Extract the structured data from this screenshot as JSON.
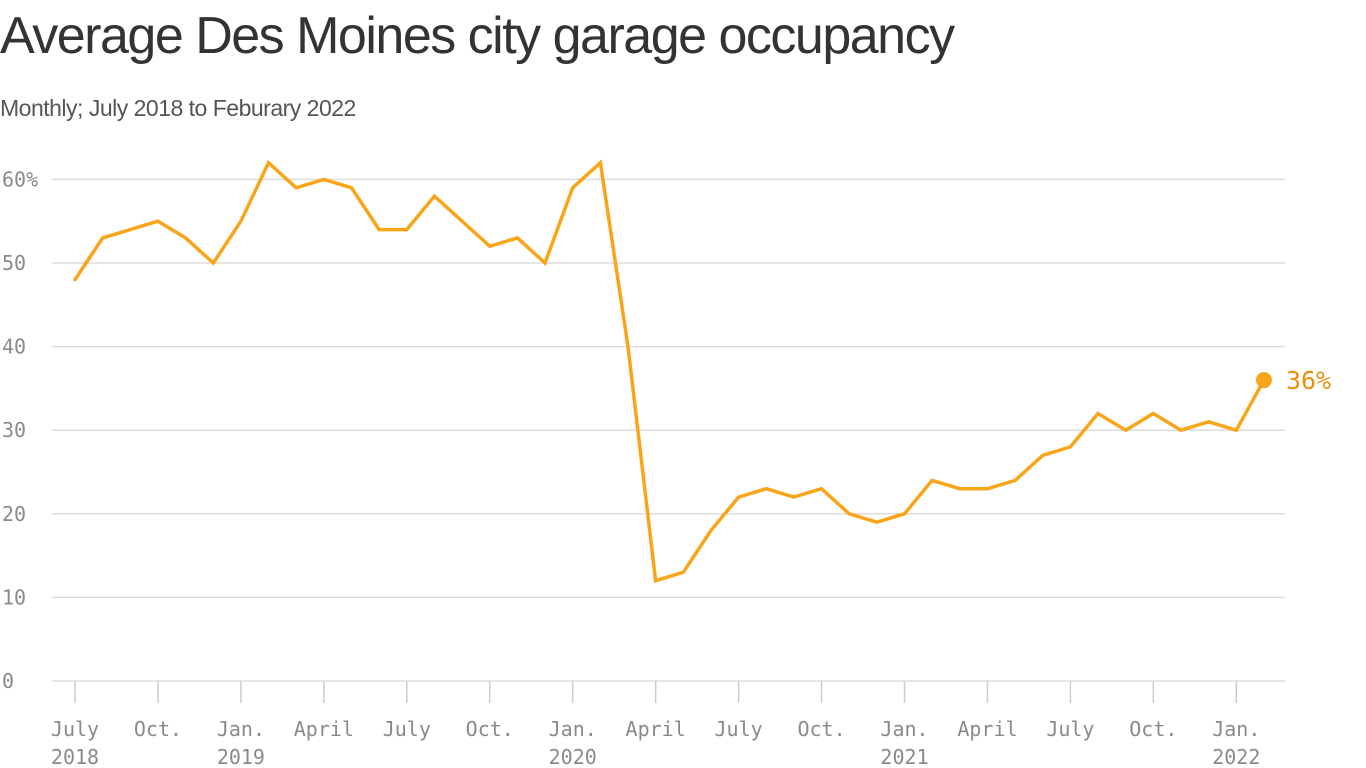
{
  "chart_data": {
    "type": "line",
    "title": "Average Des Moines city garage occupancy",
    "subtitle": "Monthly; July 2018 to Feburary 2022",
    "ylim": [
      0,
      62
    ],
    "y_ticks": [
      {
        "value": 60,
        "label": "60%"
      },
      {
        "value": 50,
        "label": "50"
      },
      {
        "value": 40,
        "label": "40"
      },
      {
        "value": 30,
        "label": "30"
      },
      {
        "value": 20,
        "label": "20"
      },
      {
        "value": 10,
        "label": "10"
      },
      {
        "value": 0,
        "label": "0"
      }
    ],
    "x_ticks": [
      {
        "index": 0,
        "label": "July",
        "sublabel": "2018"
      },
      {
        "index": 3,
        "label": "Oct.",
        "sublabel": ""
      },
      {
        "index": 6,
        "label": "Jan.",
        "sublabel": "2019"
      },
      {
        "index": 9,
        "label": "April",
        "sublabel": ""
      },
      {
        "index": 12,
        "label": "July",
        "sublabel": ""
      },
      {
        "index": 15,
        "label": "Oct.",
        "sublabel": ""
      },
      {
        "index": 18,
        "label": "Jan.",
        "sublabel": "2020"
      },
      {
        "index": 21,
        "label": "April",
        "sublabel": ""
      },
      {
        "index": 24,
        "label": "July",
        "sublabel": ""
      },
      {
        "index": 27,
        "label": "Oct.",
        "sublabel": ""
      },
      {
        "index": 30,
        "label": "Jan.",
        "sublabel": "2021"
      },
      {
        "index": 33,
        "label": "April",
        "sublabel": ""
      },
      {
        "index": 36,
        "label": "July",
        "sublabel": ""
      },
      {
        "index": 39,
        "label": "Oct.",
        "sublabel": ""
      },
      {
        "index": 42,
        "label": "Jan.",
        "sublabel": "2022"
      }
    ],
    "grid": true,
    "line_color": "#f9a51a",
    "label_color": "#e8900c",
    "end_label": "36%",
    "series": [
      {
        "x": [
          "2018-07",
          "2018-08",
          "2018-09",
          "2018-10",
          "2018-11",
          "2018-12",
          "2019-01",
          "2019-02",
          "2019-03",
          "2019-04",
          "2019-05",
          "2019-06",
          "2019-07",
          "2019-08",
          "2019-09",
          "2019-10",
          "2019-11",
          "2019-12",
          "2020-01",
          "2020-02",
          "2020-03",
          "2020-04",
          "2020-05",
          "2020-06",
          "2020-07",
          "2020-08",
          "2020-09",
          "2020-10",
          "2020-11",
          "2020-12",
          "2021-01",
          "2021-02",
          "2021-03",
          "2021-04",
          "2021-05",
          "2021-06",
          "2021-07",
          "2021-08",
          "2021-09",
          "2021-10",
          "2021-11",
          "2021-12",
          "2022-01",
          "2022-02"
        ],
        "values": [
          48,
          53,
          54,
          55,
          53,
          50,
          55,
          62,
          59,
          60,
          59,
          54,
          54,
          58,
          55,
          52,
          53,
          50,
          59,
          62,
          40,
          12,
          13,
          18,
          22,
          23,
          22,
          23,
          20,
          19,
          20,
          24,
          23,
          23,
          24,
          27,
          28,
          32,
          30,
          32,
          30,
          31,
          30,
          36
        ]
      }
    ]
  }
}
